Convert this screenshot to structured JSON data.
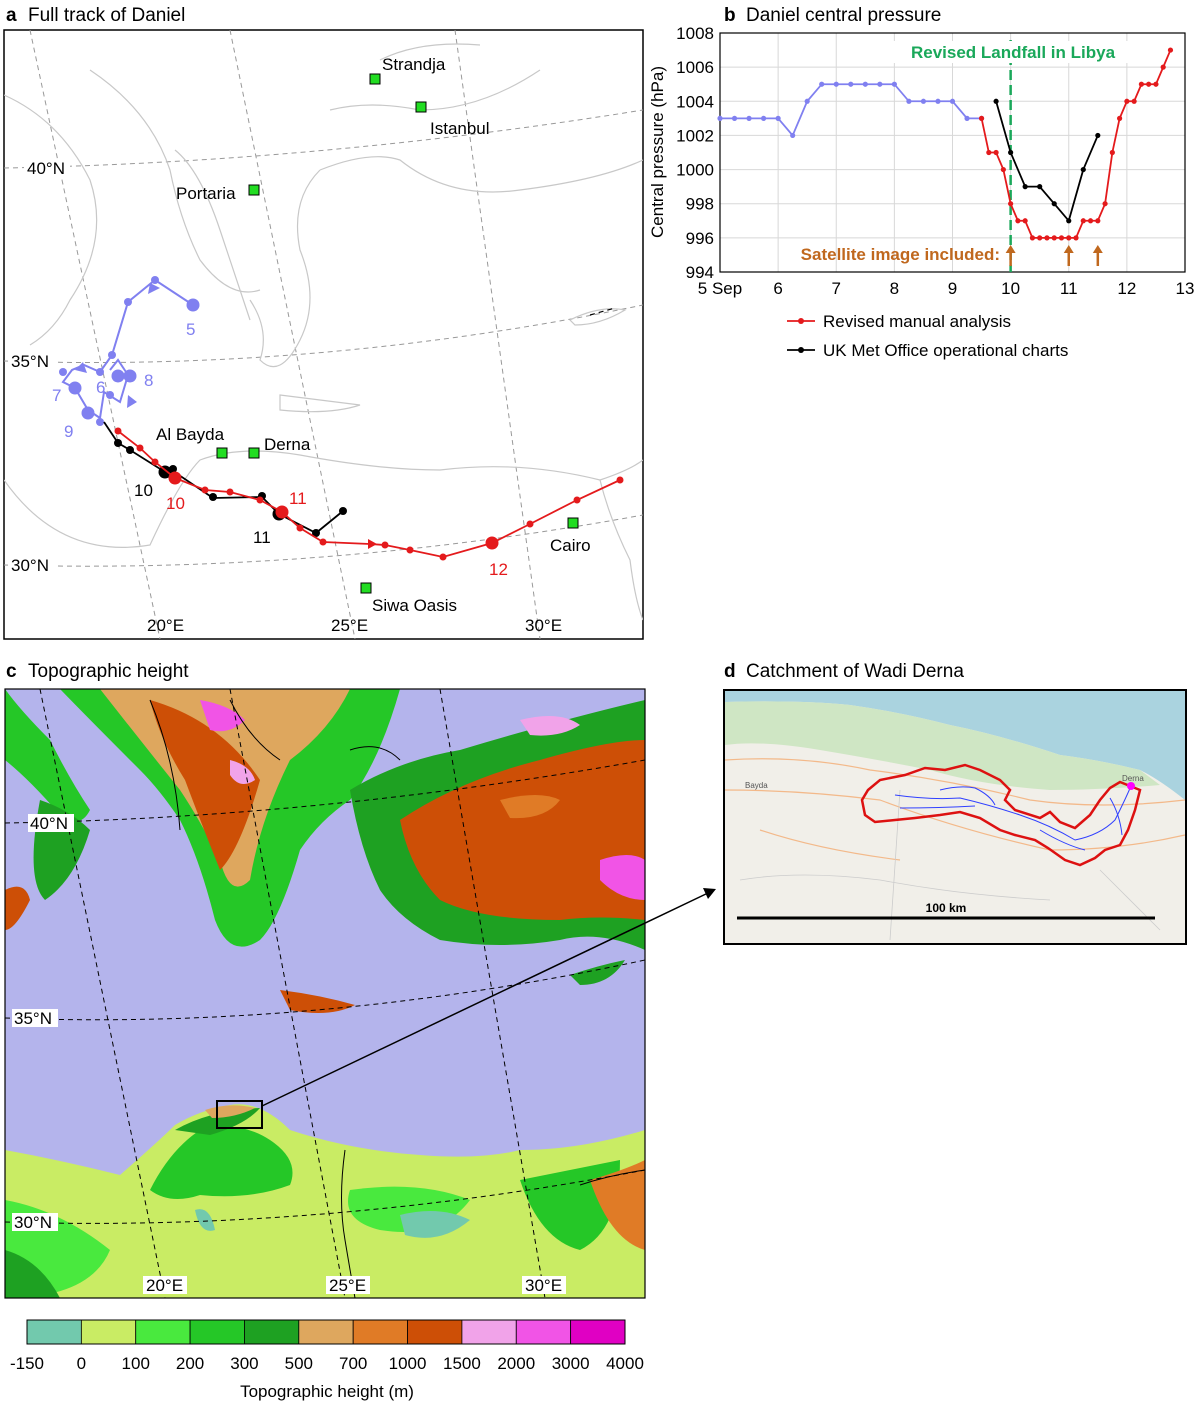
{
  "panels": {
    "a": {
      "letter": "a",
      "title": "Full track of Daniel"
    },
    "b": {
      "letter": "b",
      "title": "Daniel central pressure"
    },
    "c": {
      "letter": "c",
      "title": "Topographic height"
    },
    "d": {
      "letter": "d",
      "title": "Catchment of Wadi Derna"
    }
  },
  "chart_data": [
    {
      "type": "line",
      "panel": "b",
      "title": "Daniel central pressure",
      "ylabel": "Central pressure (hPa)",
      "xlabel": "",
      "xlim": [
        5,
        13
      ],
      "ylim": [
        994,
        1008
      ],
      "x_tick_labels": [
        "5 Sep",
        "6",
        "7",
        "8",
        "9",
        "10",
        "11",
        "12",
        "13"
      ],
      "y_ticks": [
        994,
        996,
        998,
        1000,
        1002,
        1004,
        1006,
        1008
      ],
      "grid": true,
      "legend_position": "below",
      "series": [
        {
          "name": "",
          "color": "#8080f0",
          "x": [
            5.0,
            5.25,
            5.5,
            5.75,
            6.0,
            6.25,
            6.5,
            6.75,
            7.0,
            7.25,
            7.5,
            7.75,
            8.0,
            8.25,
            8.5,
            8.75,
            9.0,
            9.25,
            9.5
          ],
          "y": [
            1003,
            1003,
            1003,
            1003,
            1003,
            1002,
            1004,
            1005,
            1005,
            1005,
            1005,
            1005,
            1005,
            1004,
            1004,
            1004,
            1004,
            1003,
            1003
          ]
        },
        {
          "name": "Revised manual analysis",
          "color": "#e41a1c",
          "x": [
            9.5,
            9.625,
            9.75,
            9.875,
            10.0,
            10.125,
            10.25,
            10.375,
            10.5,
            10.625,
            10.75,
            10.875,
            11.0,
            11.125,
            11.25,
            11.375,
            11.5,
            11.625,
            11.75,
            11.875,
            12.0,
            12.125,
            12.25,
            12.375,
            12.5,
            12.625,
            12.75
          ],
          "y": [
            1003,
            1001,
            1001,
            1000,
            998,
            997,
            997,
            996,
            996,
            996,
            996,
            996,
            996,
            996,
            997,
            997,
            997,
            998,
            1001,
            1003,
            1004,
            1004,
            1005,
            1005,
            1005,
            1006,
            1007
          ]
        },
        {
          "name": "UK Met Office operational charts",
          "color": "#000000",
          "x": [
            9.75,
            10.0,
            10.25,
            10.5,
            10.75,
            11.0,
            11.25,
            11.5
          ],
          "y": [
            1004,
            1001,
            999,
            999,
            998,
            997,
            1000,
            1002
          ]
        }
      ],
      "annotations": [
        {
          "text": "Revised Landfall in Libya",
          "x": 10.0,
          "color": "#1aa85a"
        },
        {
          "text": "Satellite image included:",
          "arrows_at": [
            10.0,
            11.0,
            11.5
          ],
          "color": "#c0681e"
        }
      ]
    },
    {
      "type": "line",
      "panel": "a",
      "title": "Full track of Daniel",
      "lat_labels": [
        "40°N",
        "35°N",
        "30°N"
      ],
      "lon_labels": [
        "20°E",
        "25°E",
        "30°E"
      ],
      "places": [
        "Strandja",
        "Istanbul",
        "Portaria",
        "Al Bayda",
        "Derna",
        "Cairo",
        "Siwa Oasis"
      ],
      "series": [
        {
          "name": "",
          "color": "#8080f0",
          "day_labels": [
            "5",
            "6",
            "7",
            "8",
            "9"
          ]
        },
        {
          "name": "Revised manual analysis",
          "color": "#e41a1c",
          "day_labels": [
            "10",
            "11",
            "12"
          ]
        },
        {
          "name": "UK Met Office operational charts",
          "color": "#000000",
          "day_labels": [
            "10",
            "11"
          ]
        }
      ]
    },
    {
      "type": "heatmap",
      "panel": "c",
      "title": "Topographic height",
      "lat_labels": [
        "40°N",
        "35°N",
        "30°N"
      ],
      "lon_labels": [
        "20°E",
        "25°E",
        "30°E"
      ],
      "colorbar": {
        "label": "Topographic height (m)",
        "tick_labels": [
          "-150",
          "0",
          "100",
          "200",
          "300",
          "500",
          "700",
          "1000",
          "1500",
          "2000",
          "3000",
          "4000"
        ],
        "colors": [
          "#72c9ad",
          "#c9ec64",
          "#49e93e",
          "#25c727",
          "#1ea122",
          "#dea75e",
          "#e07b26",
          "#cd4f06",
          "#f1a3e9",
          "#f154e6",
          "#e000c3"
        ]
      },
      "sea_color": "#b4b4ec"
    },
    {
      "type": "other",
      "panel": "d",
      "title": "Catchment of Wadi Derna",
      "scale_bar": "100 km",
      "map_labels": [
        "Bayda",
        "Derna"
      ]
    }
  ]
}
